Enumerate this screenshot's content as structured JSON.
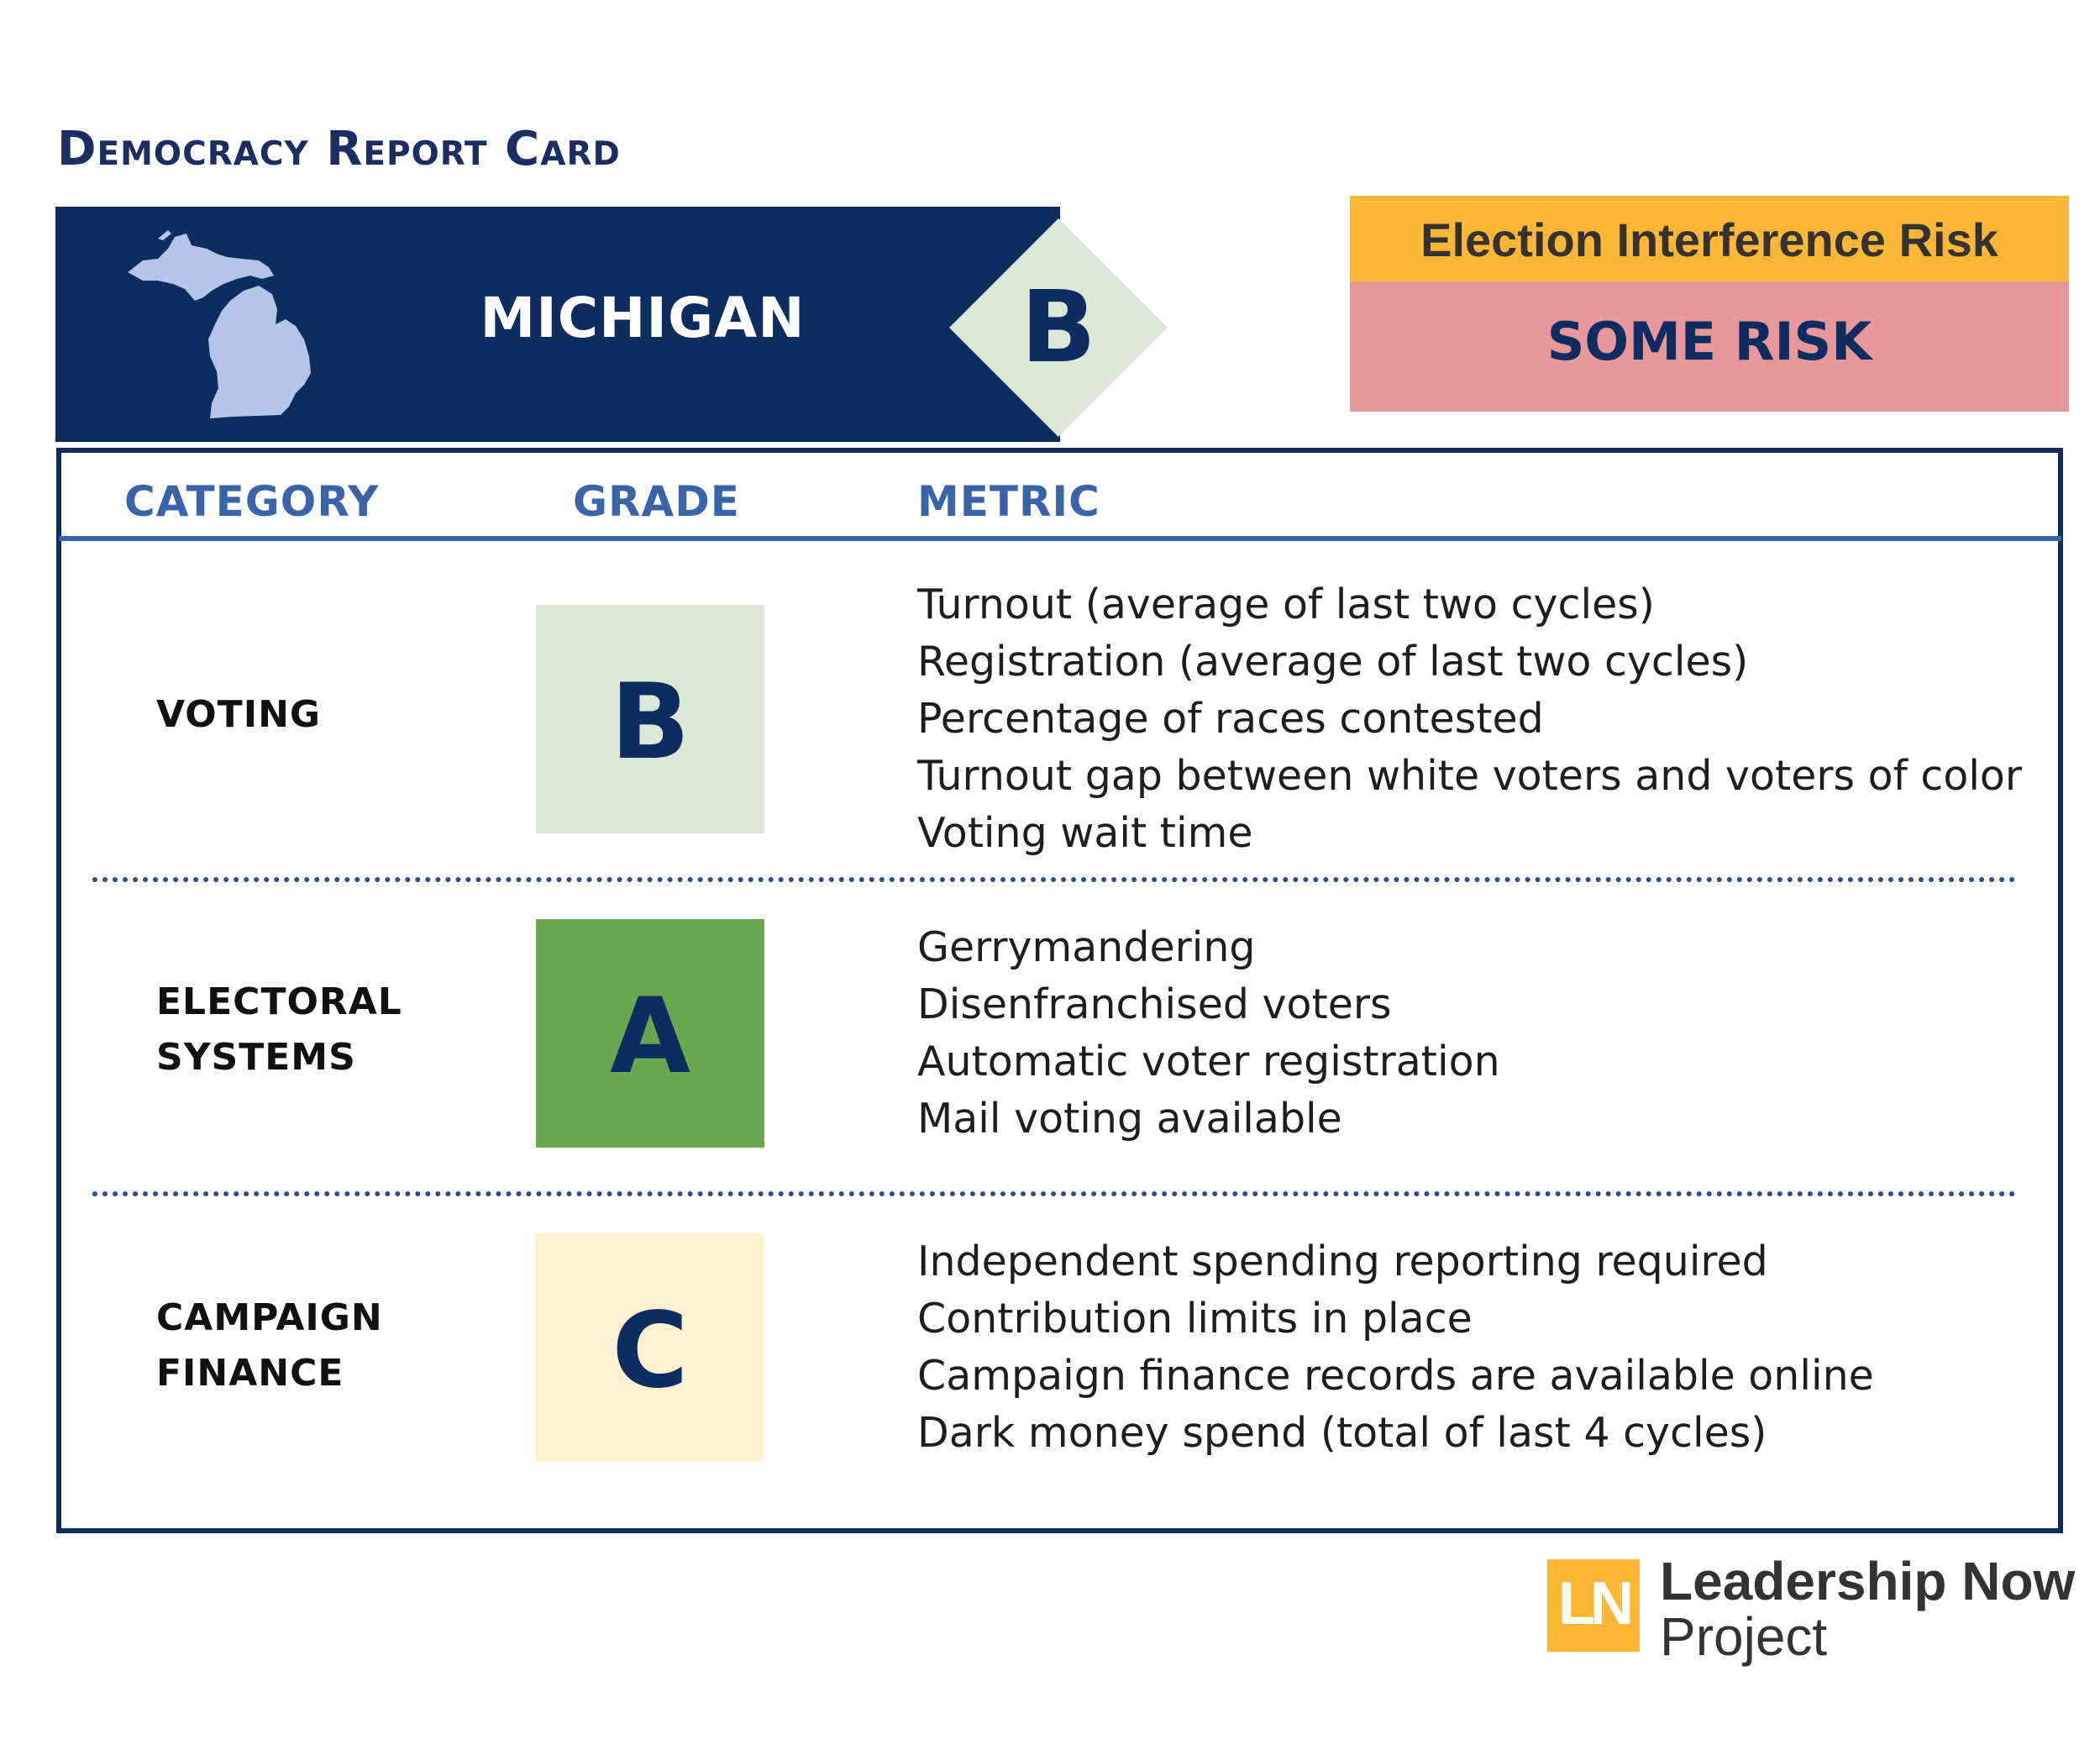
{
  "page_title": "Democracy Report Card",
  "header": {
    "state_name": "MICHIGAN",
    "overall_grade": "B",
    "state_map_icon": "michigan-map-icon",
    "colors": {
      "banner": "#0d2d61",
      "diamond": "#dbe8d5",
      "map": "#b3c6e7"
    }
  },
  "risk": {
    "label": "Election Interference Risk",
    "value": "SOME RISK",
    "colors": {
      "label_bg": "#fdb735",
      "value_bg": "#e99899"
    }
  },
  "table": {
    "headers": {
      "category": "CATEGORY",
      "grade": "GRADE",
      "metric": "METRIC"
    },
    "rows": [
      {
        "category_lines": [
          "VOTING"
        ],
        "grade": "B",
        "grade_color": "#dbe8d5",
        "metrics": [
          "Turnout (average of last two cycles)",
          "Registration (average of last two cycles)",
          "Percentage of races contested",
          "Turnout gap between white voters and voters of color",
          "Voting wait time"
        ]
      },
      {
        "category_lines": [
          "ELECTORAL",
          "SYSTEMS"
        ],
        "grade": "A",
        "grade_color": "#6aa84f",
        "metrics": [
          "Gerrymandering",
          "Disenfranchised voters",
          "Automatic voter registration",
          "Mail voting available"
        ]
      },
      {
        "category_lines": [
          "CAMPAIGN",
          "FINANCE"
        ],
        "grade": "C",
        "grade_color": "#fff1cf",
        "metrics": [
          "Independent spending reporting required",
          "Contribution limits in place",
          "Campaign finance records are available online",
          "Dark money spend (total of last 4 cycles)"
        ]
      }
    ]
  },
  "footer": {
    "logo_mark": "LN",
    "logo_line1": "Leadership Now",
    "logo_line2": "Project",
    "logo_color": "#fdb735"
  }
}
